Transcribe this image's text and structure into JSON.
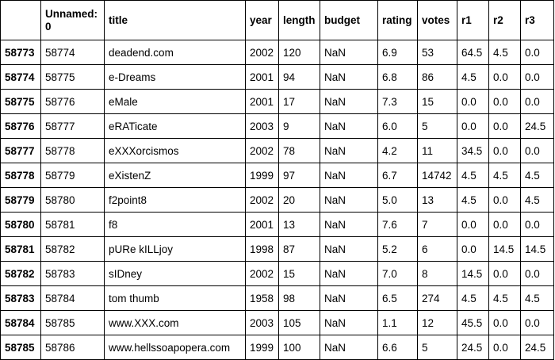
{
  "table": {
    "columns": [
      "",
      "Unnamed: 0",
      "title",
      "year",
      "length",
      "budget",
      "rating",
      "votes",
      "r1",
      "r2",
      "r3"
    ],
    "rows": [
      {
        "index": "58773",
        "unnamed": "58774",
        "title": "deadend.com",
        "year": "2002",
        "length": "120",
        "budget": "NaN",
        "rating": "6.9",
        "votes": "53",
        "r1": "64.5",
        "r2": "4.5",
        "r3": "0.0"
      },
      {
        "index": "58774",
        "unnamed": "58775",
        "title": "e-Dreams",
        "year": "2001",
        "length": "94",
        "budget": "NaN",
        "rating": "6.8",
        "votes": "86",
        "r1": "4.5",
        "r2": "0.0",
        "r3": "0.0"
      },
      {
        "index": "58775",
        "unnamed": "58776",
        "title": "eMale",
        "year": "2001",
        "length": "17",
        "budget": "NaN",
        "rating": "7.3",
        "votes": "15",
        "r1": "0.0",
        "r2": "0.0",
        "r3": "0.0"
      },
      {
        "index": "58776",
        "unnamed": "58777",
        "title": "eRATicate",
        "year": "2003",
        "length": "9",
        "budget": "NaN",
        "rating": "6.0",
        "votes": "5",
        "r1": "0.0",
        "r2": "0.0",
        "r3": "24.5"
      },
      {
        "index": "58777",
        "unnamed": "58778",
        "title": "eXXXorcismos",
        "year": "2002",
        "length": "78",
        "budget": "NaN",
        "rating": "4.2",
        "votes": "11",
        "r1": "34.5",
        "r2": "0.0",
        "r3": "0.0"
      },
      {
        "index": "58778",
        "unnamed": "58779",
        "title": "eXistenZ",
        "year": "1999",
        "length": "97",
        "budget": "NaN",
        "rating": "6.7",
        "votes": "14742",
        "r1": "4.5",
        "r2": "4.5",
        "r3": "4.5"
      },
      {
        "index": "58779",
        "unnamed": "58780",
        "title": "f2point8",
        "year": "2002",
        "length": "20",
        "budget": "NaN",
        "rating": "5.0",
        "votes": "13",
        "r1": "4.5",
        "r2": "0.0",
        "r3": "4.5"
      },
      {
        "index": "58780",
        "unnamed": "58781",
        "title": "f8",
        "year": "2001",
        "length": "13",
        "budget": "NaN",
        "rating": "7.6",
        "votes": "7",
        "r1": "0.0",
        "r2": "0.0",
        "r3": "0.0"
      },
      {
        "index": "58781",
        "unnamed": "58782",
        "title": "pURe kILLjoy",
        "year": "1998",
        "length": "87",
        "budget": "NaN",
        "rating": "5.2",
        "votes": "6",
        "r1": "0.0",
        "r2": "14.5",
        "r3": "14.5"
      },
      {
        "index": "58782",
        "unnamed": "58783",
        "title": "sIDney",
        "year": "2002",
        "length": "15",
        "budget": "NaN",
        "rating": "7.0",
        "votes": "8",
        "r1": "14.5",
        "r2": "0.0",
        "r3": "0.0"
      },
      {
        "index": "58783",
        "unnamed": "58784",
        "title": "tom thumb",
        "year": "1958",
        "length": "98",
        "budget": "NaN",
        "rating": "6.5",
        "votes": "274",
        "r1": "4.5",
        "r2": "4.5",
        "r3": "4.5"
      },
      {
        "index": "58784",
        "unnamed": "58785",
        "title": "www.XXX.com",
        "year": "2003",
        "length": "105",
        "budget": "NaN",
        "rating": "1.1",
        "votes": "12",
        "r1": "45.5",
        "r2": "0.0",
        "r3": "0.0"
      },
      {
        "index": "58785",
        "unnamed": "58786",
        "title": "www.hellssoapopera.com",
        "year": "1999",
        "length": "100",
        "budget": "NaN",
        "rating": "6.6",
        "votes": "5",
        "r1": "24.5",
        "r2": "0.0",
        "r3": "24.5"
      }
    ]
  }
}
